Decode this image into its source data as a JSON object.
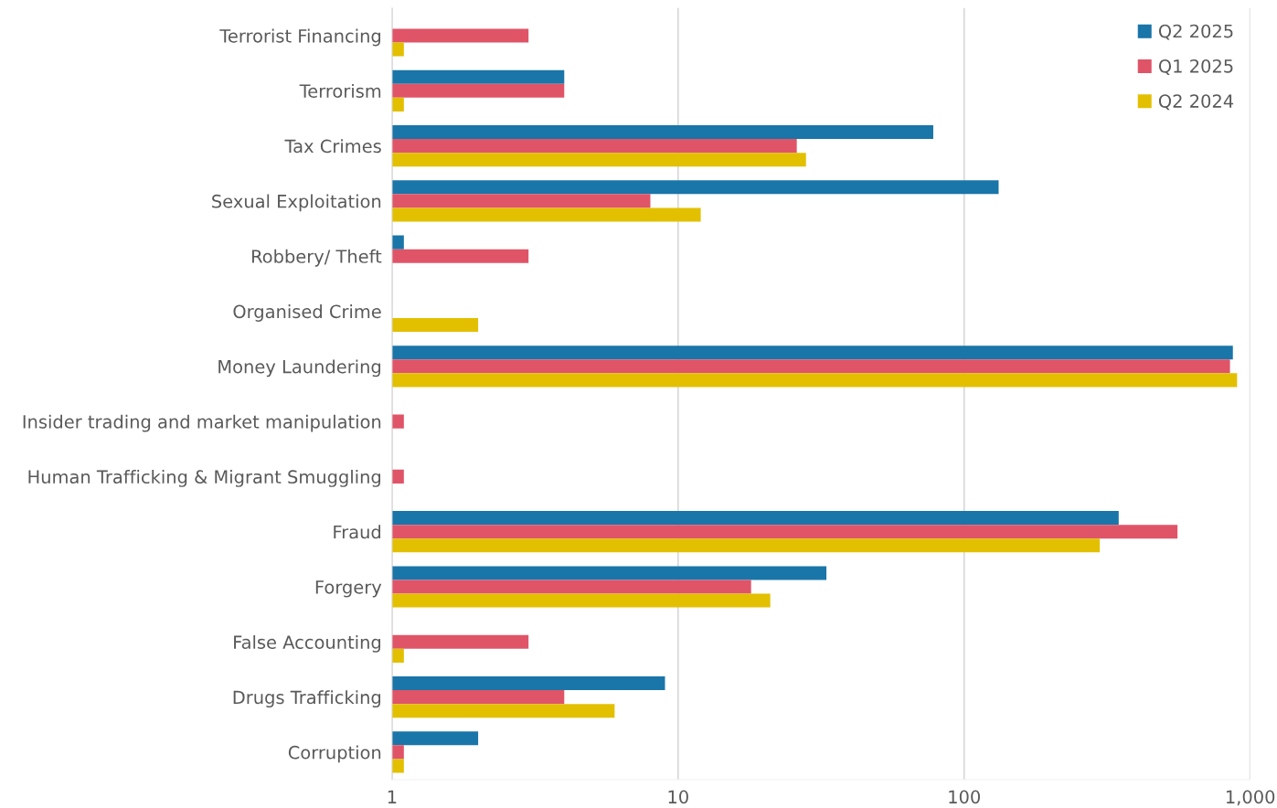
{
  "chart_data": {
    "type": "bar",
    "orientation": "horizontal",
    "log": "x",
    "categories": [
      "Terrorist Financing",
      "Terrorism",
      "Tax Crimes",
      "Sexual Exploitation",
      "Robbery/ Theft",
      "Organised Crime",
      "Money Laundering",
      "Insider trading and market manipulation",
      "Human Trafficking & Migrant Smuggling",
      "Fraud",
      "Forgery",
      "False Accounting",
      "Drugs Trafficking",
      "Corruption"
    ],
    "series": [
      {
        "name": "Q2 2025",
        "color": "#1a75a8",
        "values": [
          null,
          4,
          78,
          132,
          1.1,
          null,
          870,
          null,
          null,
          347,
          33,
          null,
          9,
          2
        ]
      },
      {
        "name": "Q1 2025",
        "color": "#e05468",
        "values": [
          3,
          4,
          26,
          8,
          3,
          null,
          850,
          1.1,
          1.1,
          557,
          18,
          3,
          4,
          1.1
        ]
      },
      {
        "name": "Q2 2024",
        "color": "#e2c000",
        "values": [
          1.1,
          1.1,
          28,
          12,
          null,
          2,
          900,
          null,
          null,
          298,
          21,
          1.1,
          6,
          1.1
        ]
      }
    ],
    "xlim": [
      1,
      1000
    ],
    "xticks": [
      1,
      10,
      100,
      {
        "value": 1000,
        "label": "1,000"
      }
    ],
    "grid": "x",
    "legend": "top right"
  }
}
